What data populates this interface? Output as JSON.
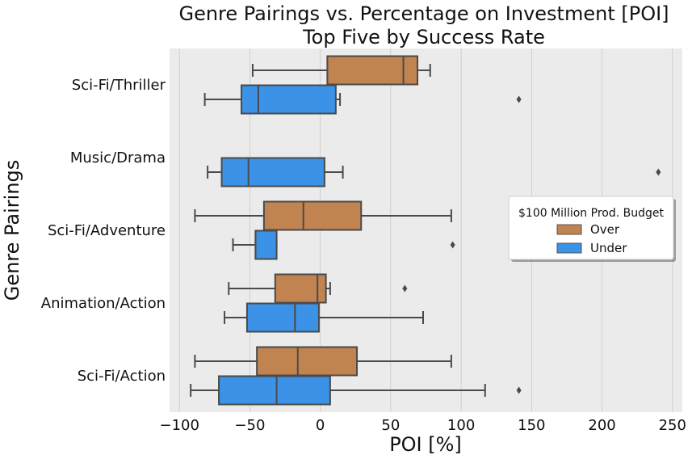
{
  "chart_data": {
    "type": "boxplot",
    "title": "Genre Pairings vs. Percentage on Investment [POI]",
    "subtitle": "Top Five by Success Rate",
    "xlabel": "POI [%]",
    "ylabel": "Genre Pairings",
    "xlim": [
      -107,
      257
    ],
    "xticks": [
      -100,
      -50,
      0,
      50,
      100,
      150,
      200,
      250
    ],
    "grid": "vertical",
    "orientation": "horizontal",
    "legend": {
      "title": "$100 Million Prod. Budget",
      "placement": "center-right",
      "entries": [
        {
          "label": "Over",
          "color": "#c1834f"
        },
        {
          "label": "Under",
          "color": "#3b92e7"
        }
      ]
    },
    "categories": [
      "Sci-Fi/Thriller",
      "Music/Drama",
      "Sci-Fi/Adventure",
      "Animation/Action",
      "Sci-Fi/Action"
    ],
    "boxes": [
      {
        "category": "Sci-Fi/Thriller",
        "group": "Over",
        "whisker_low": -48,
        "q1": 5,
        "median": 59,
        "q3": 69,
        "whisker_high": 78,
        "fliers": []
      },
      {
        "category": "Sci-Fi/Thriller",
        "group": "Under",
        "whisker_low": -82,
        "q1": -56,
        "median": -44,
        "q3": 11,
        "whisker_high": 14,
        "fliers": [
          141
        ]
      },
      {
        "category": "Music/Drama",
        "group": "Under",
        "whisker_low": -80,
        "q1": -70,
        "median": -51,
        "q3": 3,
        "whisker_high": 16,
        "fliers": [
          240
        ]
      },
      {
        "category": "Sci-Fi/Adventure",
        "group": "Over",
        "whisker_low": -89,
        "q1": -40,
        "median": -12,
        "q3": 29,
        "whisker_high": 93,
        "fliers": []
      },
      {
        "category": "Sci-Fi/Adventure",
        "group": "Under",
        "whisker_low": -62,
        "q1": -46,
        "median": -46,
        "q3": -31,
        "whisker_high": -31,
        "fliers": [
          94
        ]
      },
      {
        "category": "Animation/Action",
        "group": "Over",
        "whisker_low": -65,
        "q1": -32,
        "median": -2,
        "q3": 4,
        "whisker_high": 7,
        "fliers": [
          60
        ]
      },
      {
        "category": "Animation/Action",
        "group": "Under",
        "whisker_low": -68,
        "q1": -52,
        "median": -18,
        "q3": -1,
        "whisker_high": 73,
        "fliers": []
      },
      {
        "category": "Sci-Fi/Action",
        "group": "Over",
        "whisker_low": -89,
        "q1": -45,
        "median": -16,
        "q3": 26,
        "whisker_high": 93,
        "fliers": []
      },
      {
        "category": "Sci-Fi/Action",
        "group": "Under",
        "whisker_low": -92,
        "q1": -72,
        "median": -31,
        "q3": 7,
        "whisker_high": 117,
        "fliers": [
          141
        ]
      }
    ]
  }
}
